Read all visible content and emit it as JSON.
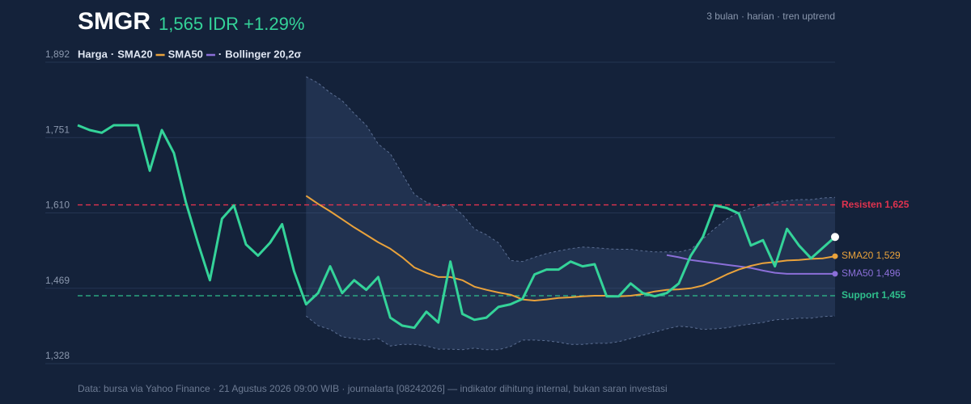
{
  "chart_data": {
    "type": "line",
    "title": "SMGR",
    "subtitle": "1,565 IDR +1.29%",
    "note": "3 bulan · harian · tren uptrend",
    "source": "Data: bursa via Yahoo Finance · 21 Agustus 2026 09:00 WIB · journalarta [08242026] — indikator dihitung internal, bukan saran investasi",
    "ylim": [
      1328,
      1892
    ],
    "yticks": [
      {
        "value": 1328,
        "label": "1,328"
      },
      {
        "value": 1469,
        "label": "1,469"
      },
      {
        "value": 1610,
        "label": "1,610"
      },
      {
        "value": 1751,
        "label": "1,751"
      },
      {
        "value": 1892,
        "label": "1,892"
      }
    ],
    "grid": true,
    "series": [
      {
        "name": "Harga",
        "color": "#34d399",
        "values": [
          1774,
          1765,
          1760,
          1774,
          1774,
          1774,
          1689,
          1765,
          1722,
          1630,
          1554,
          1484,
          1599,
          1624,
          1551,
          1530,
          1554,
          1589,
          1501,
          1439,
          1460,
          1510,
          1460,
          1484,
          1466,
          1490,
          1414,
          1399,
          1395,
          1425,
          1405,
          1519,
          1421,
          1410,
          1414,
          1434,
          1439,
          1449,
          1495,
          1504,
          1504,
          1519,
          1510,
          1514,
          1454,
          1454,
          1478,
          1460,
          1454,
          1460,
          1478,
          1530,
          1565,
          1624,
          1619,
          1609,
          1549,
          1559,
          1510,
          1580,
          1549,
          1525,
          1545,
          1565
        ]
      },
      {
        "name": "SMA20",
        "color": "#e9a23b",
        "label": "SMA20 1,529",
        "values": [
          null,
          null,
          null,
          null,
          null,
          null,
          null,
          null,
          null,
          null,
          null,
          null,
          null,
          null,
          null,
          null,
          null,
          null,
          null,
          1642,
          1627,
          1613,
          1598,
          1583,
          1569,
          1555,
          1543,
          1527,
          1508,
          1498,
          1490,
          1490,
          1484,
          1472,
          1466,
          1461,
          1457,
          1448,
          1446,
          1448,
          1451,
          1452,
          1454,
          1455,
          1455,
          1454,
          1455,
          1458,
          1463,
          1466,
          1467,
          1469,
          1474,
          1484,
          1495,
          1504,
          1511,
          1516,
          1518,
          1521,
          1522,
          1524,
          1525,
          1529
        ]
      },
      {
        "name": "SMA50",
        "color": "#8b6fd8",
        "label": "SMA50 1,496",
        "values": [
          null,
          null,
          null,
          null,
          null,
          null,
          null,
          null,
          null,
          null,
          null,
          null,
          null,
          null,
          null,
          null,
          null,
          null,
          null,
          null,
          null,
          null,
          null,
          null,
          null,
          null,
          null,
          null,
          null,
          null,
          null,
          null,
          null,
          null,
          null,
          null,
          null,
          null,
          null,
          null,
          null,
          null,
          null,
          null,
          null,
          null,
          null,
          null,
          null,
          1531,
          1527,
          1522,
          1519,
          1516,
          1513,
          1510,
          1507,
          1502,
          1498,
          1496,
          1496,
          1496,
          1496,
          1496
        ]
      }
    ],
    "bollinger": {
      "name": "Bollinger 20,2σ",
      "upper": [
        null,
        null,
        null,
        null,
        null,
        null,
        null,
        null,
        null,
        null,
        null,
        null,
        null,
        null,
        null,
        null,
        null,
        null,
        null,
        1865,
        1853,
        1835,
        1820,
        1796,
        1774,
        1739,
        1721,
        1683,
        1645,
        1630,
        1622,
        1625,
        1607,
        1580,
        1569,
        1554,
        1521,
        1519,
        1527,
        1534,
        1539,
        1543,
        1546,
        1545,
        1543,
        1542,
        1542,
        1539,
        1537,
        1537,
        1537,
        1542,
        1561,
        1581,
        1599,
        1611,
        1619,
        1625,
        1630,
        1633,
        1635,
        1635,
        1638,
        1639
      ],
      "lower": [
        null,
        null,
        null,
        null,
        null,
        null,
        null,
        null,
        null,
        null,
        null,
        null,
        null,
        null,
        null,
        null,
        null,
        null,
        null,
        1417,
        1399,
        1392,
        1378,
        1375,
        1372,
        1375,
        1361,
        1364,
        1364,
        1361,
        1355,
        1355,
        1354,
        1357,
        1354,
        1354,
        1360,
        1372,
        1372,
        1371,
        1368,
        1364,
        1364,
        1366,
        1366,
        1369,
        1375,
        1381,
        1387,
        1393,
        1398,
        1396,
        1392,
        1393,
        1395,
        1399,
        1402,
        1405,
        1410,
        1411,
        1413,
        1413,
        1416,
        1417
      ]
    },
    "annotations": [
      {
        "label": "Resisten 1,625",
        "value": 1625,
        "color": "#e0334f"
      },
      {
        "label": "Support 1,455",
        "value": 1455,
        "color": "#2fbf8c"
      }
    ]
  }
}
